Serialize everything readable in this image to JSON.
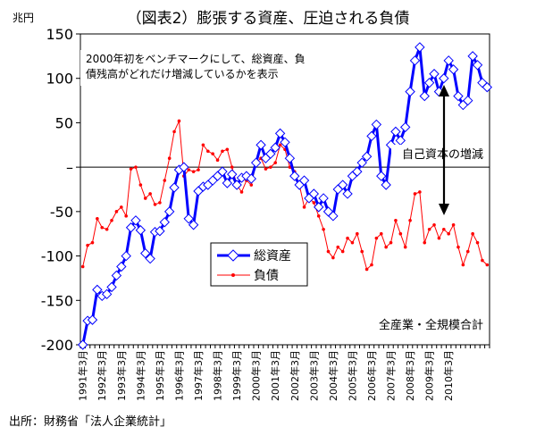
{
  "page": {
    "title": "（図表2）膨張する資産、圧迫される負債",
    "unit_label": "兆円",
    "note": [
      "2000年初をベンチマークにして、総資産、負",
      "債残高がどれだけ増減しているかを表示"
    ],
    "annotation_equity": "自己資本の増減",
    "scope_label": "全産業・全規模合計",
    "source": "出所：財務省「法人企業統計」"
  },
  "colors": {
    "assets": "#0000ff",
    "liabilities": "#ff0000",
    "marker_fill": "#ffffff",
    "axis": "#000000"
  },
  "chart_data": {
    "type": "line",
    "title": "（図表2）膨張する資産、圧迫される負債",
    "ylabel": "兆円",
    "xlabel": "",
    "ylim": [
      -200,
      150
    ],
    "yticks": [
      150,
      100,
      50,
      0,
      -50,
      -100,
      -150,
      -200
    ],
    "ytick_labels": [
      "150",
      "100",
      "50",
      "–",
      "-50",
      "-100",
      "-150",
      "-200"
    ],
    "x_start": "1991-Q1",
    "x_tick_labels": [
      "1991年3月",
      "1992年3月",
      "1993年3月",
      "1994年3月",
      "1995年3月",
      "1996年3月",
      "1997年3月",
      "1998年3月",
      "1999年3月",
      "2000年3月",
      "2001年3月",
      "2002年3月",
      "2003年3月",
      "2004年3月",
      "2005年3月",
      "2006年3月",
      "2007年3月",
      "2008年3月",
      "2009年3月",
      "2010年3月"
    ],
    "grid": false,
    "legend_position": "center-left",
    "series": [
      {
        "name": "総資産",
        "color": "#0000ff",
        "marker": "diamond",
        "values": [
          -200,
          -173,
          -172,
          -138,
          -145,
          -143,
          -135,
          -122,
          -112,
          -100,
          -68,
          -60,
          -71,
          -97,
          -103,
          -73,
          -72,
          -62,
          -50,
          -23,
          -3,
          0,
          -58,
          -65,
          -27,
          -22,
          -20,
          -15,
          -10,
          -5,
          -18,
          -8,
          -20,
          -12,
          -10,
          -13,
          5,
          25,
          10,
          15,
          22,
          38,
          28,
          10,
          -10,
          -20,
          -15,
          -35,
          -30,
          -45,
          -35,
          -50,
          -55,
          -25,
          -20,
          -30,
          -10,
          -5,
          5,
          12,
          35,
          48,
          -10,
          -20,
          25,
          40,
          30,
          45,
          85,
          120,
          135,
          80,
          95,
          105,
          85,
          100,
          120,
          110,
          80,
          70,
          75,
          125,
          115,
          95,
          90
        ],
        "label_bbox_note": ""
      },
      {
        "name": "負債",
        "color": "#ff0000",
        "marker": "dot",
        "values": [
          -112,
          -88,
          -85,
          -58,
          -68,
          -70,
          -60,
          -50,
          -45,
          -55,
          -2,
          0,
          -20,
          -35,
          -30,
          -42,
          -40,
          -15,
          10,
          40,
          52,
          -10,
          -3,
          -5,
          -3,
          25,
          18,
          15,
          8,
          18,
          20,
          0,
          -20,
          -28,
          -15,
          -20,
          5,
          10,
          -2,
          0,
          5,
          25,
          20,
          0,
          -5,
          -20,
          -45,
          -35,
          -40,
          -55,
          -70,
          -95,
          -102,
          -90,
          -95,
          -80,
          -85,
          -75,
          -95,
          -115,
          -110,
          -80,
          -75,
          -90,
          -85,
          -60,
          -75,
          -90,
          -60,
          -30,
          -28,
          -85,
          -70,
          -65,
          -80,
          -70,
          -75,
          -65,
          -90,
          -110,
          -95,
          -75,
          -85,
          -105,
          -110
        ],
        "label_bbox_note": ""
      }
    ]
  }
}
